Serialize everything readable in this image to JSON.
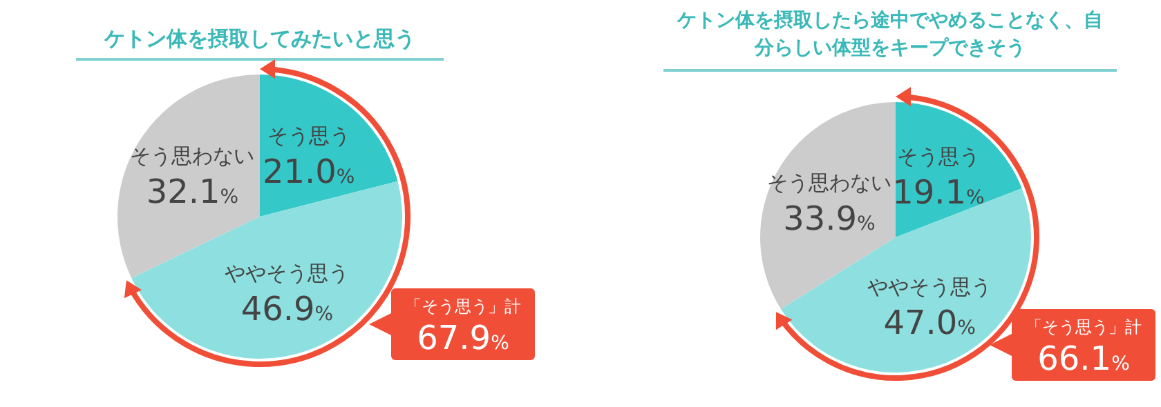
{
  "chart_data": [
    {
      "type": "pie",
      "title": "ケトン体を摂取してみたいと思う",
      "categories": [
        "そう思う",
        "ややそう思う",
        "そう思わない"
      ],
      "values": [
        21.0,
        46.9,
        32.1
      ],
      "value_labels": [
        "21.0%",
        "46.9%",
        "32.1%"
      ],
      "colors": [
        "#35c8c8",
        "#8ee0e0",
        "#cccccc"
      ],
      "annotations": [
        "「そう思う」計",
        "67.9%"
      ]
    },
    {
      "type": "pie",
      "title": "ケトン体を摂取したら途中でやめることなく、自分らしい体型をキープできそう",
      "categories": [
        "そう思う",
        "ややそう思う",
        "そう思わない"
      ],
      "values": [
        19.1,
        47.0,
        33.9
      ],
      "value_labels": [
        "19.1%",
        "47.0%",
        "33.9%"
      ],
      "colors": [
        "#35c8c8",
        "#8ee0e0",
        "#cccccc"
      ],
      "annotations": [
        "「そう思う」計",
        "66.1%"
      ]
    }
  ]
}
